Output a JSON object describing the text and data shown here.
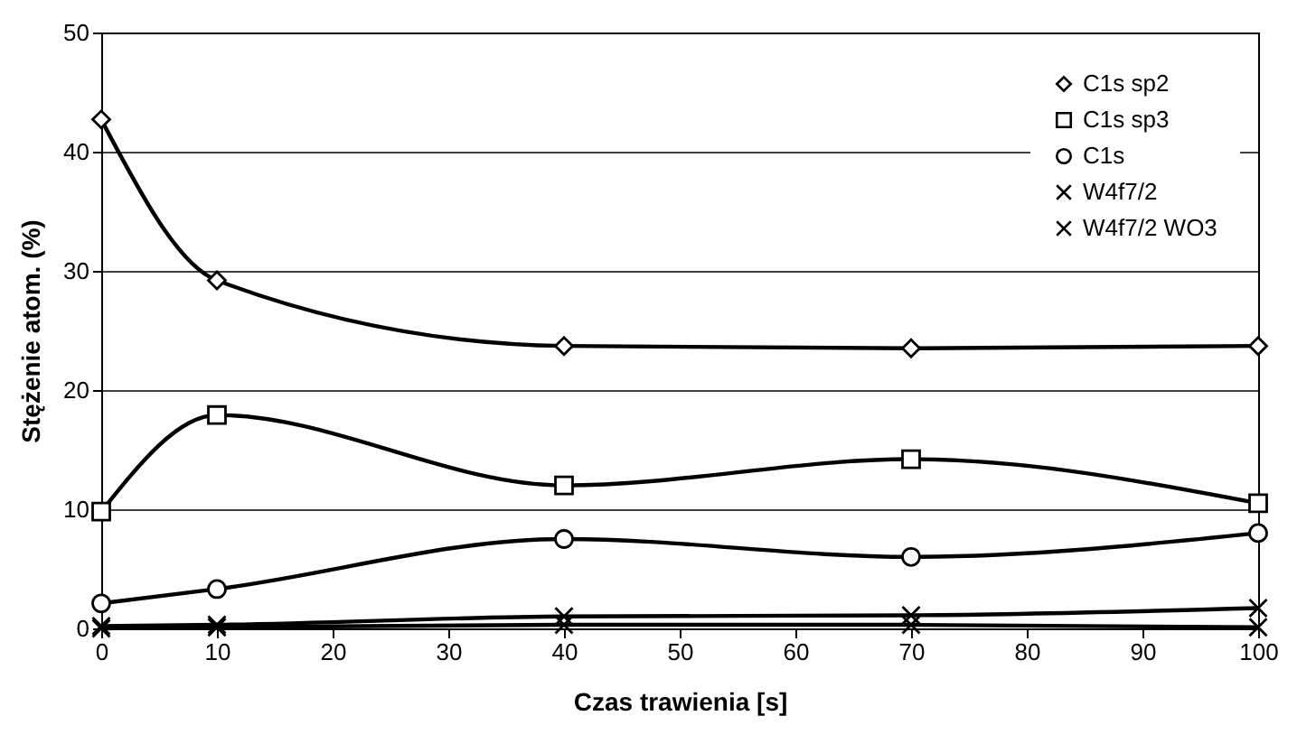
{
  "chart_data": {
    "type": "line",
    "xlabel": "Czas trawienia [s]",
    "ylabel": "Stężenie atom. (%)",
    "x": [
      0,
      10,
      40,
      70,
      100
    ],
    "xlim": [
      0,
      100
    ],
    "xticks": [
      0,
      10,
      20,
      30,
      40,
      50,
      60,
      70,
      80,
      90,
      100
    ],
    "ylim": [
      0,
      50
    ],
    "yticks": [
      0,
      10,
      20,
      30,
      40,
      50
    ],
    "grid": "y",
    "legend": "top right",
    "line_style": "solid",
    "series": [
      {
        "name": "C1s sp2",
        "color": "#000000",
        "marker": "diamond",
        "values": [
          42.7,
          29.2,
          23.7,
          23.5,
          23.7
        ]
      },
      {
        "name": "C1s sp3",
        "color": "#000000",
        "marker": "square",
        "values": [
          9.8,
          17.9,
          12.0,
          14.2,
          10.5
        ]
      },
      {
        "name": "C1s",
        "color": "#000000",
        "marker": "circle",
        "values": [
          2.1,
          3.3,
          7.5,
          6.0,
          8.0
        ]
      },
      {
        "name": "W4f7/2",
        "color": "#000000",
        "marker": "cross",
        "values": [
          0.2,
          0.3,
          1.0,
          1.1,
          1.7
        ]
      },
      {
        "name": "W4f7/2 WO3",
        "color": "#000000",
        "marker": "cross",
        "values": [
          0.0,
          0.1,
          0.3,
          0.3,
          0.1
        ]
      }
    ]
  }
}
